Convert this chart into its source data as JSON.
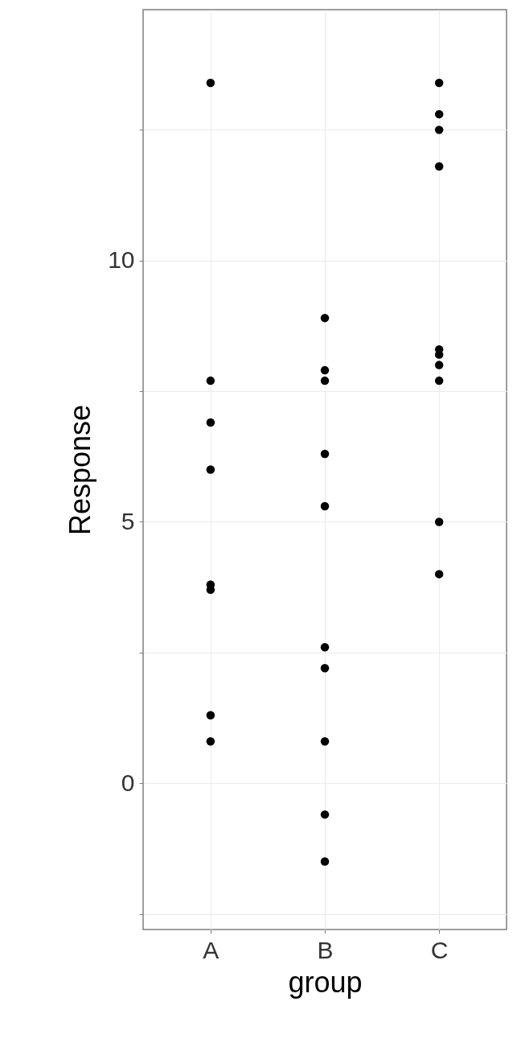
{
  "chart_data": {
    "type": "scatter",
    "xlabel": "group",
    "ylabel": "Response",
    "categories": [
      "A",
      "B",
      "C"
    ],
    "series": [
      {
        "color": "#000000",
        "x": [
          "A",
          "A",
          "A",
          "A",
          "A",
          "A",
          "A",
          "A",
          "B",
          "B",
          "B",
          "B",
          "B",
          "B",
          "B",
          "B",
          "B",
          "B",
          "C",
          "C",
          "C",
          "C",
          "C",
          "C",
          "C",
          "C",
          "C",
          "C"
        ],
        "values": [
          13.4,
          7.7,
          6.9,
          6.0,
          3.8,
          3.7,
          1.3,
          0.8,
          8.9,
          7.9,
          7.7,
          6.3,
          5.3,
          2.6,
          2.2,
          0.8,
          -0.6,
          -1.5,
          13.4,
          12.8,
          12.5,
          11.8,
          8.3,
          8.2,
          8.0,
          7.7,
          5.0,
          4.0
        ]
      }
    ],
    "ylim": [
      -2.8,
      14.8
    ],
    "yticks": [
      {
        "value": -2.5,
        "label": null
      },
      0,
      {
        "value": 2.5,
        "label": null
      },
      5,
      {
        "value": 7.5,
        "label": null
      },
      10,
      {
        "value": 12.5,
        "label": null
      }
    ],
    "grid": true,
    "marker": "circle"
  }
}
